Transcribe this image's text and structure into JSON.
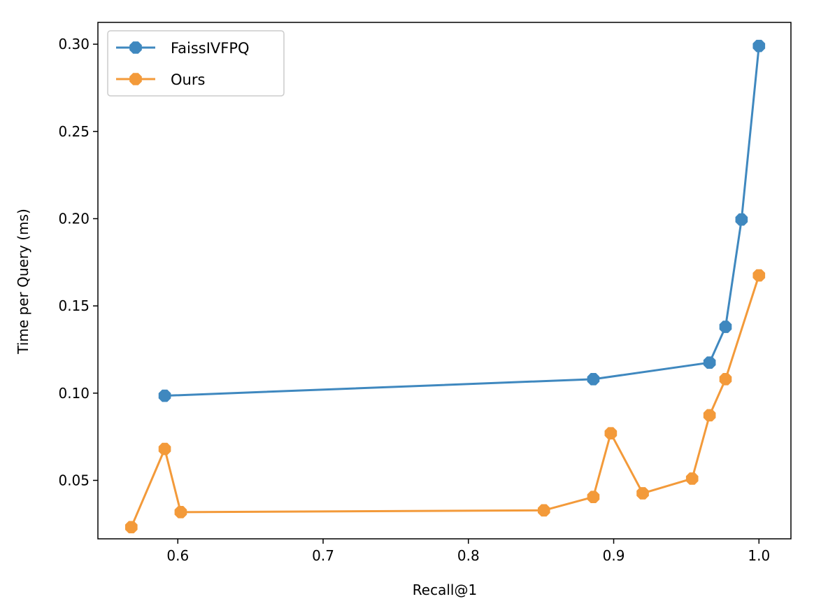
{
  "chart_data": {
    "type": "line",
    "xlabel": "Recall@1",
    "ylabel": "Time per Query (ms)",
    "xlim": [
      0.545,
      1.022
    ],
    "ylim": [
      0.0165,
      0.3125
    ],
    "x_ticks": [
      0.6,
      0.7,
      0.8,
      0.9,
      1.0
    ],
    "x_tick_labels": [
      "0.6",
      "0.7",
      "0.8",
      "0.9",
      "1.0"
    ],
    "y_ticks": [
      0.05,
      0.1,
      0.15,
      0.2,
      0.25,
      0.3
    ],
    "y_tick_labels": [
      "0.05",
      "0.10",
      "0.15",
      "0.20",
      "0.25",
      "0.30"
    ],
    "grid": false,
    "legend_position": "top-left",
    "series": [
      {
        "name": "FaissIVFPQ",
        "color": "#3f88bf",
        "marker": "octagon",
        "points": [
          {
            "x": 0.591,
            "y": 0.0985
          },
          {
            "x": 0.886,
            "y": 0.108
          },
          {
            "x": 0.966,
            "y": 0.1175
          },
          {
            "x": 0.977,
            "y": 0.138
          },
          {
            "x": 0.988,
            "y": 0.1995
          },
          {
            "x": 1.0,
            "y": 0.299
          }
        ]
      },
      {
        "name": "Ours",
        "color": "#f39a3a",
        "marker": "octagon",
        "points": [
          {
            "x": 0.568,
            "y": 0.0232
          },
          {
            "x": 0.591,
            "y": 0.068
          },
          {
            "x": 0.602,
            "y": 0.0318
          },
          {
            "x": 0.852,
            "y": 0.0328
          },
          {
            "x": 0.886,
            "y": 0.0405
          },
          {
            "x": 0.898,
            "y": 0.077
          },
          {
            "x": 0.92,
            "y": 0.0426
          },
          {
            "x": 0.954,
            "y": 0.051
          },
          {
            "x": 0.966,
            "y": 0.0873
          },
          {
            "x": 0.977,
            "y": 0.108
          },
          {
            "x": 1.0,
            "y": 0.1675
          }
        ]
      }
    ]
  }
}
